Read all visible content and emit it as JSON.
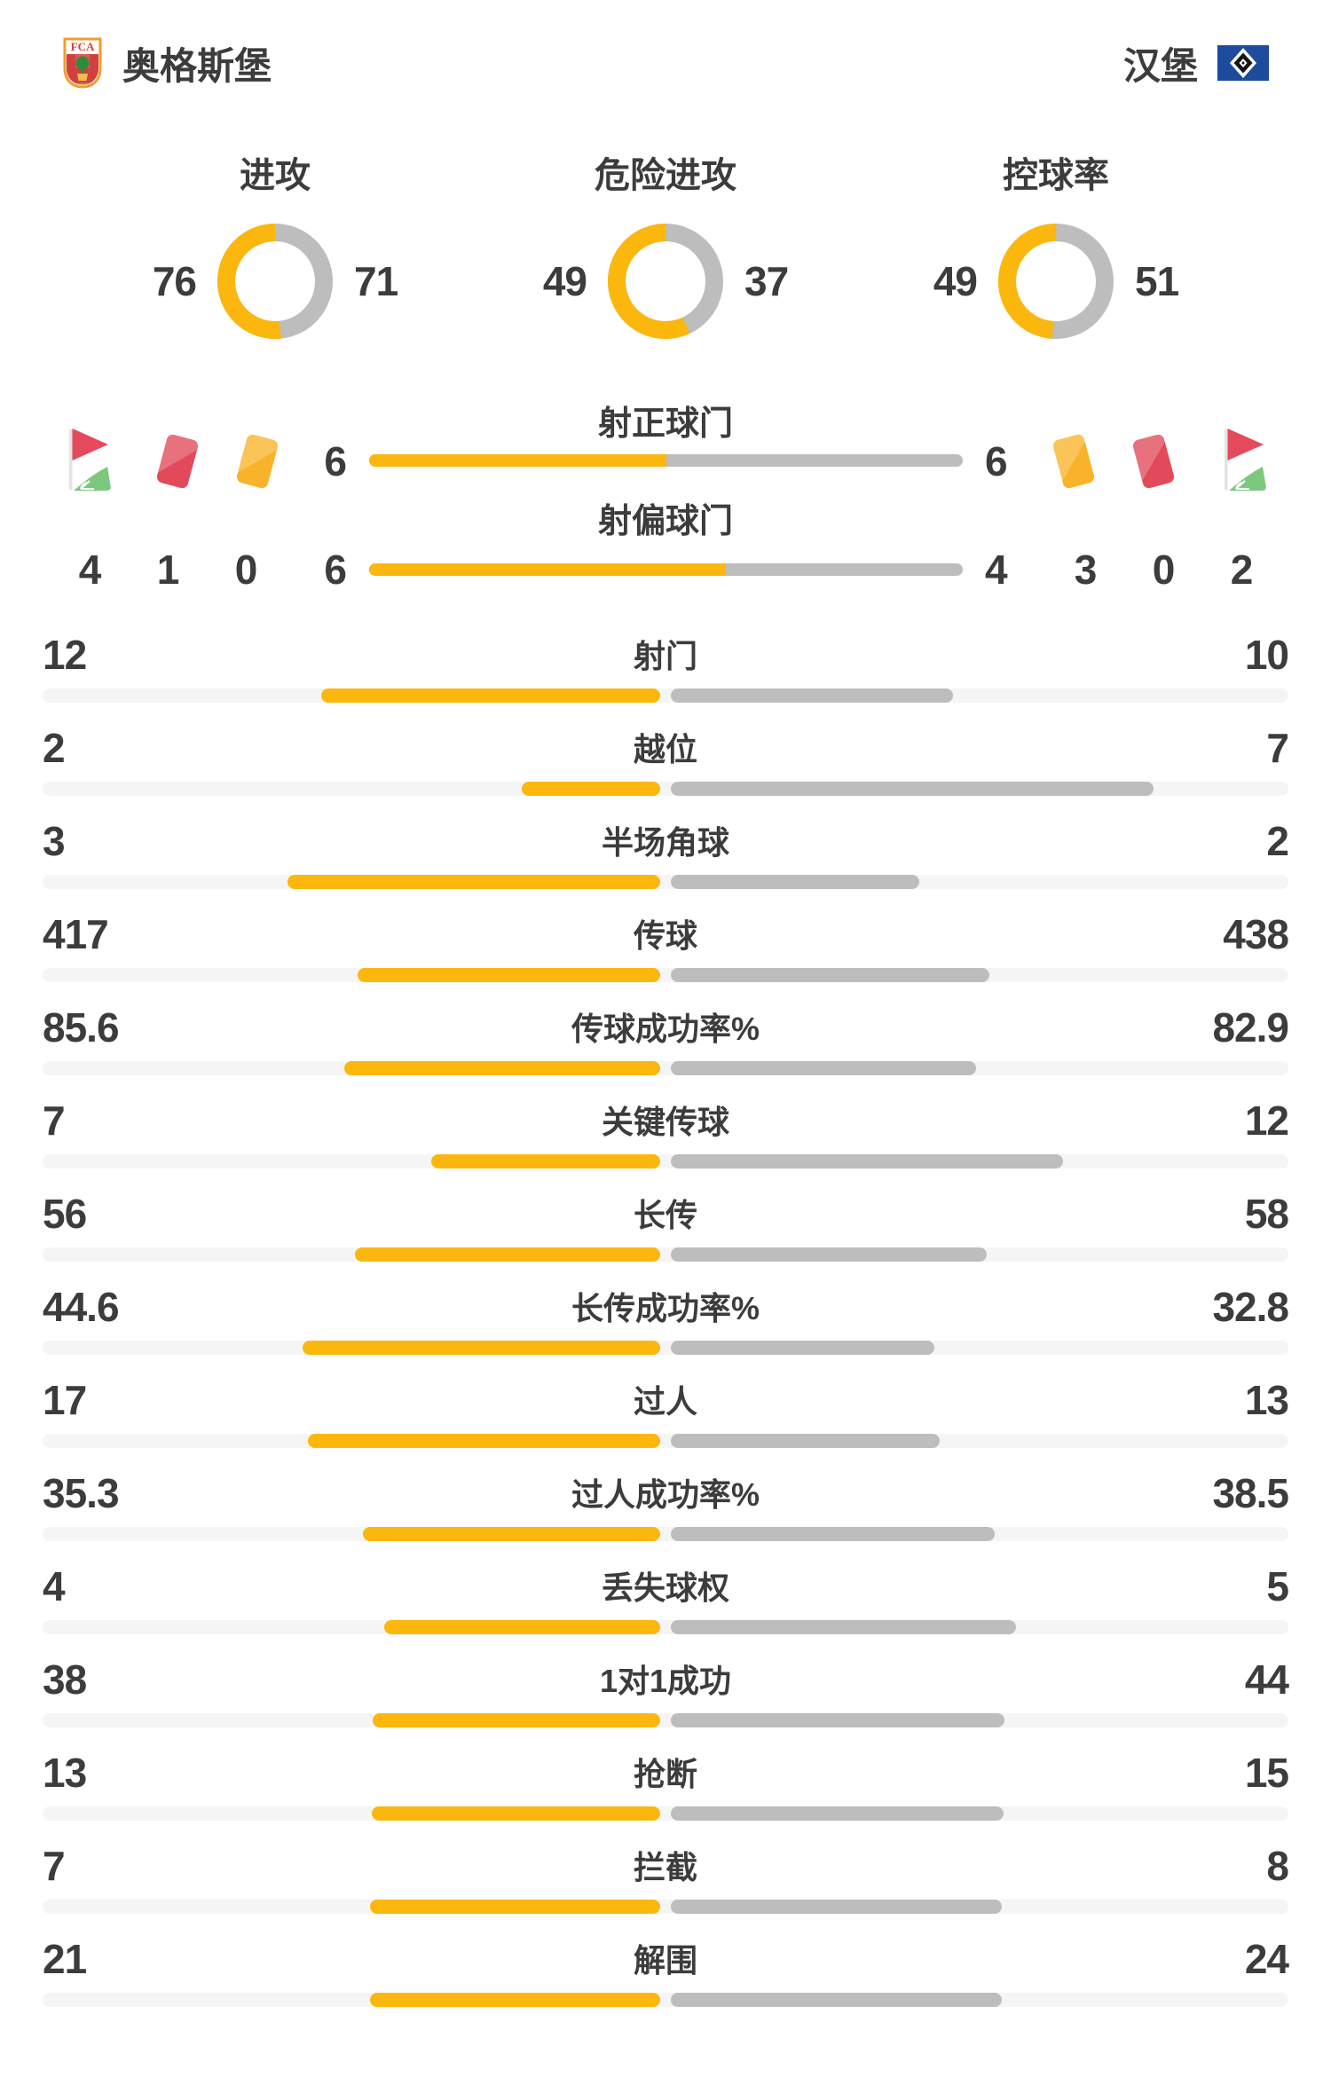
{
  "colors": {
    "home": "#fbb70d",
    "away": "#bdbdbd",
    "track": "#f5f5f5",
    "text": "#3c3c3c",
    "red_card": "#e2495a",
    "yellow_card": "#f8b32a",
    "flag_red": "#e5495c",
    "flag_green": "#7cc87f",
    "hsv_blue": "#1c4c9b",
    "fca_red": "#d2403e",
    "fca_border": "#ef9e2e",
    "fca_green": "#2e8b3a",
    "fca_yellow": "#eebd4a"
  },
  "chart_data": {
    "type": "bar",
    "teams": [
      "奥格斯堡",
      "汉堡"
    ],
    "donuts": [
      {
        "type": "pie",
        "label": "进攻",
        "home": 76,
        "away": 71
      },
      {
        "type": "pie",
        "label": "危险进攻",
        "home": 49,
        "away": 37
      },
      {
        "type": "pie",
        "label": "控球率",
        "home": 49,
        "away": 51
      }
    ],
    "discipline": {
      "home": {
        "corner_kicks": 4,
        "red_cards": 1,
        "yellow_cards": 0
      },
      "away": {
        "yellow_cards": 3,
        "red_cards": 0,
        "corner_kicks": 2
      }
    },
    "shot_rows": [
      {
        "label": "射正球门",
        "home": 6,
        "away": 6
      },
      {
        "label": "射偏球门",
        "home": 6,
        "away": 4
      }
    ],
    "stat_rows": [
      {
        "label": "射门",
        "home": 12,
        "away": 10
      },
      {
        "label": "越位",
        "home": 2,
        "away": 7
      },
      {
        "label": "半场角球",
        "home": 3,
        "away": 2
      },
      {
        "label": "传球",
        "home": 417,
        "away": 438
      },
      {
        "label": "传球成功率%",
        "home": 85.6,
        "away": 82.9
      },
      {
        "label": "关键传球",
        "home": 7,
        "away": 12
      },
      {
        "label": "长传",
        "home": 56,
        "away": 58
      },
      {
        "label": "长传成功率%",
        "home": 44.6,
        "away": 32.8
      },
      {
        "label": "过人",
        "home": 17,
        "away": 13
      },
      {
        "label": "过人成功率%",
        "home": 35.3,
        "away": 38.5
      },
      {
        "label": "丢失球权",
        "home": 4,
        "away": 5
      },
      {
        "label": "1对1成功",
        "home": 38,
        "away": 44
      },
      {
        "label": "抢断",
        "home": 13,
        "away": 15
      },
      {
        "label": "拦截",
        "home": 7,
        "away": 8
      },
      {
        "label": "解围",
        "home": 21,
        "away": 24
      }
    ]
  }
}
